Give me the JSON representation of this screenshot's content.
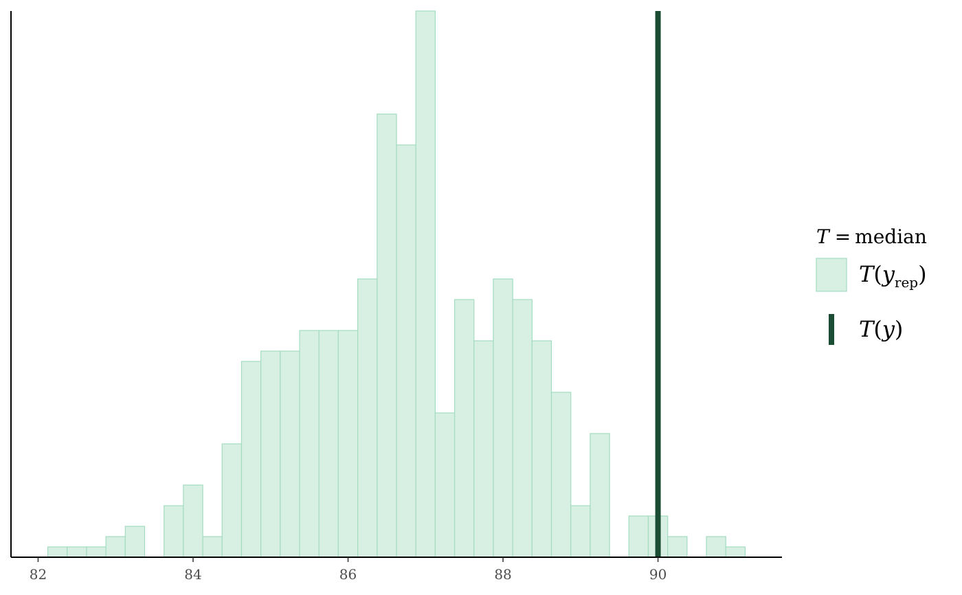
{
  "chart_data": {
    "type": "bar",
    "subtype": "histogram",
    "bin_width": 0.25,
    "x_ticks": [
      82,
      84,
      86,
      88,
      90
    ],
    "xlim": [
      81.65,
      91.6
    ],
    "ylim": [
      0,
      53
    ],
    "bins": [
      {
        "x": 82.25,
        "count": 1
      },
      {
        "x": 82.5,
        "count": 1
      },
      {
        "x": 82.75,
        "count": 1
      },
      {
        "x": 83.0,
        "count": 2
      },
      {
        "x": 83.25,
        "count": 3
      },
      {
        "x": 83.75,
        "count": 5
      },
      {
        "x": 84.0,
        "count": 7
      },
      {
        "x": 84.25,
        "count": 2
      },
      {
        "x": 84.5,
        "count": 11
      },
      {
        "x": 84.75,
        "count": 19
      },
      {
        "x": 85.0,
        "count": 20
      },
      {
        "x": 85.25,
        "count": 20
      },
      {
        "x": 85.5,
        "count": 22
      },
      {
        "x": 85.75,
        "count": 22
      },
      {
        "x": 86.0,
        "count": 22
      },
      {
        "x": 86.25,
        "count": 27
      },
      {
        "x": 86.5,
        "count": 43
      },
      {
        "x": 86.75,
        "count": 40
      },
      {
        "x": 87.0,
        "count": 53
      },
      {
        "x": 87.25,
        "count": 14
      },
      {
        "x": 87.5,
        "count": 25
      },
      {
        "x": 87.75,
        "count": 21
      },
      {
        "x": 88.0,
        "count": 27
      },
      {
        "x": 88.25,
        "count": 25
      },
      {
        "x": 88.5,
        "count": 21
      },
      {
        "x": 88.75,
        "count": 16
      },
      {
        "x": 89.0,
        "count": 5
      },
      {
        "x": 89.25,
        "count": 12
      },
      {
        "x": 89.75,
        "count": 4
      },
      {
        "x": 90.0,
        "count": 4
      },
      {
        "x": 90.25,
        "count": 2
      },
      {
        "x": 90.75,
        "count": 2
      },
      {
        "x": 91.0,
        "count": 1
      }
    ],
    "observed_value": 90.0,
    "legend": {
      "position": "right",
      "title_T": "T",
      "title_eq": "=",
      "title_stat": "median",
      "item_rep_T": "T",
      "item_rep_open": "(",
      "item_rep_var": "y",
      "item_rep_sub": "rep",
      "item_rep_close": ")",
      "item_obs_T": "T",
      "item_obs_open": "(",
      "item_obs_var": "y",
      "item_obs_close": ")"
    },
    "colors": {
      "bar_fill": "#d8f0e4",
      "bar_stroke": "#a3dcc0",
      "observed_line": "#1b4d35",
      "axis": "#000000",
      "tick_text": "#4d4d4d"
    },
    "grid": false,
    "y_axis_labels": false
  }
}
